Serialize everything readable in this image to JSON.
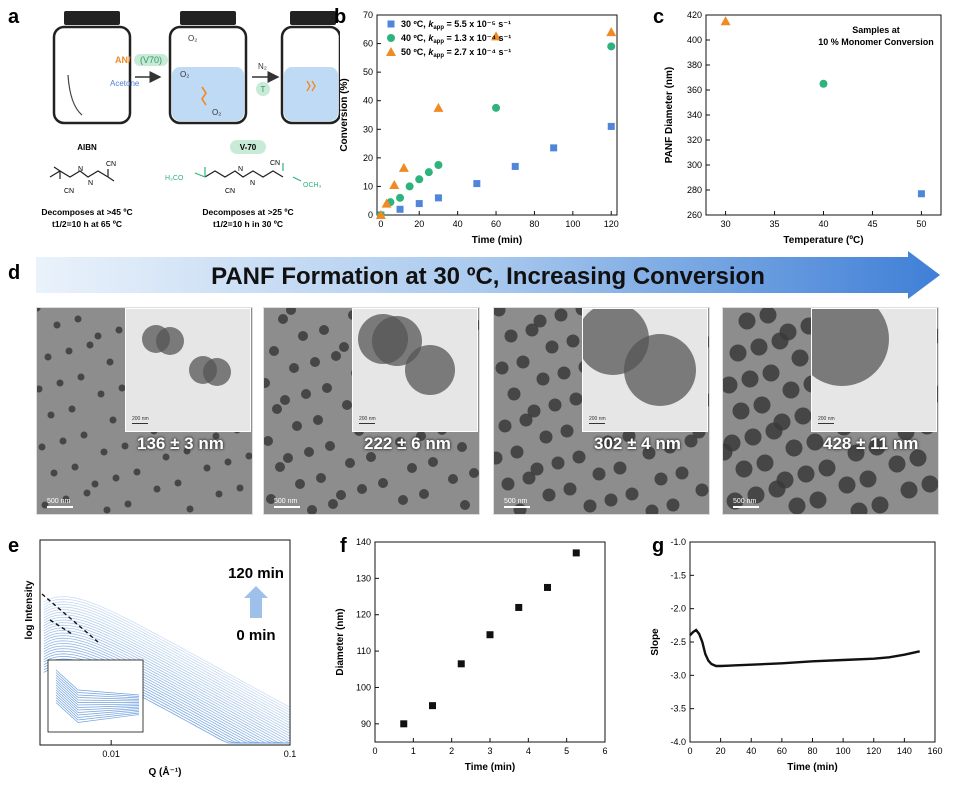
{
  "panels": {
    "a": "a",
    "b": "b",
    "c": "c",
    "d": "d",
    "e": "e",
    "f": "f",
    "g": "g"
  },
  "panel_a": {
    "vial2_reagent_an": "AN/",
    "vial2_reagent_v70": "(V70)",
    "vial2_solvent": "Acetone",
    "vial2_o2": "O₂",
    "vial2_o2_b": "O₂",
    "vial2_o2_c": "O₂",
    "arrow_gas": "N₂",
    "arrow_temp": "T",
    "initiator1_name": "AIBN",
    "initiator1_group1": "CN",
    "initiator1_group2": "CN",
    "initiator1_n1": "N",
    "initiator1_n2": "N",
    "initiator1_desc_line1": "Decomposes at >45 ºC",
    "initiator1_desc_line2": "t1/2=10 h at 65 ºC",
    "initiator2_name": "V-70",
    "initiator2_group1": "CN",
    "initiator2_group2": "CN",
    "initiator2_ome1": "H₃CO",
    "initiator2_ome2": "OCH₃",
    "initiator2_n1": "N",
    "initiator2_n2": "N",
    "initiator2_desc_line1": "Decomposes at >25 ºC",
    "initiator2_desc_line2": "t1/2=10 h in 30 ºC"
  },
  "banner": {
    "text": "PANF Formation at 30 ºC, Increasing Conversion"
  },
  "tem_images": [
    {
      "size": "136 ± 3 nm",
      "scale": "500 nm",
      "inset_scale": "200 nm"
    },
    {
      "size": "222 ± 6 nm",
      "scale": "500 nm",
      "inset_scale": "200 nm"
    },
    {
      "size": "302 ± 4 nm",
      "scale": "500 nm",
      "inset_scale": "200 nm"
    },
    {
      "size": "428 ± 11 nm",
      "scale": "500 nm",
      "inset_scale": "200 nm"
    }
  ],
  "panel_e": {
    "time_top": "120 min",
    "time_bottom": "0 min"
  },
  "chart_data": [
    {
      "id": "b",
      "type": "scatter",
      "xlabel": "Time (min)",
      "ylabel": "Conversion (%)",
      "xlim": [
        -2,
        123
      ],
      "ylim": [
        0,
        70
      ],
      "xticks": [
        0,
        20,
        40,
        60,
        80,
        100,
        120
      ],
      "yticks": [
        0,
        10,
        20,
        30,
        40,
        50,
        60,
        70
      ],
      "legend_position": "top-left",
      "series": [
        {
          "name": "30 ºC, kapp = 5.5 x 10⁻⁵ s⁻¹",
          "label_prefix": "30 ºC, ",
          "label_k": "k",
          "label_sub": "app",
          "label_val": " = 5.5 x 10⁻⁵ s⁻¹",
          "marker": "square",
          "color": "#4f86d9",
          "x": [
            0,
            10,
            20,
            30,
            50,
            70,
            90,
            120
          ],
          "y": [
            0,
            2,
            4,
            6,
            11,
            17,
            23.5,
            31
          ]
        },
        {
          "name": "40 ºC, kapp = 1.3 x 10⁻⁴ s⁻¹",
          "label_prefix": "40 ºC, ",
          "label_k": "k",
          "label_sub": "app",
          "label_val": " = 1.3 x 10⁻⁴ s⁻¹",
          "marker": "circle",
          "color": "#2fb37c",
          "x": [
            0,
            5,
            10,
            15,
            20,
            25,
            30,
            60,
            120
          ],
          "y": [
            0,
            4.5,
            6,
            10,
            12.5,
            15,
            17.5,
            37.5,
            59
          ]
        },
        {
          "name": "50 ºC, kapp = 2.7 x 10⁻⁴ s⁻¹",
          "label_prefix": "50 ºC, ",
          "label_k": "k",
          "label_sub": "app",
          "label_val": " = 2.7 x 10⁻⁴ s⁻¹",
          "marker": "triangle",
          "color": "#f08a24",
          "x": [
            0,
            3,
            7,
            12,
            30,
            60,
            120
          ],
          "y": [
            0,
            4,
            10.5,
            16.5,
            37.5,
            62.5,
            64
          ]
        }
      ]
    },
    {
      "id": "c",
      "type": "scatter",
      "xlabel": "Temperature (ºC)",
      "ylabel": "PANF Diameter (nm)",
      "annotation_line1": "Samples at",
      "annotation_line2": "10 % Monomer Conversion",
      "xlim": [
        28,
        52
      ],
      "ylim": [
        260,
        420
      ],
      "xticks": [
        30,
        35,
        40,
        45,
        50
      ],
      "yticks": [
        260,
        280,
        300,
        320,
        340,
        360,
        380,
        400,
        420
      ],
      "series": [
        {
          "marker": "triangle",
          "color": "#f08a24",
          "x": [
            30
          ],
          "y": [
            415
          ]
        },
        {
          "marker": "circle",
          "color": "#2fb37c",
          "x": [
            40
          ],
          "y": [
            365
          ]
        },
        {
          "marker": "square",
          "color": "#4f86d9",
          "x": [
            50
          ],
          "y": [
            277
          ]
        }
      ]
    },
    {
      "id": "e",
      "type": "line",
      "xlabel": "Q (Å⁻¹)",
      "ylabel": "log Intensity",
      "xscale": "log",
      "xticks": [
        "0.01",
        "0.1"
      ],
      "curve_count": 28,
      "color": "#6fa0e0"
    },
    {
      "id": "f",
      "type": "scatter",
      "xlabel": "Time (min)",
      "ylabel": "Diameter (nm)",
      "xlim": [
        0,
        6
      ],
      "ylim": [
        85,
        140
      ],
      "xticks": [
        0,
        1,
        2,
        3,
        4,
        5,
        6
      ],
      "yticks": [
        90,
        100,
        110,
        120,
        130,
        140
      ],
      "series": [
        {
          "marker": "square",
          "color": "#111111",
          "x": [
            0.75,
            1.5,
            2.25,
            3.0,
            3.75,
            4.5,
            5.25
          ],
          "y": [
            90,
            95,
            106.5,
            114.5,
            122,
            127.5,
            137
          ]
        }
      ]
    },
    {
      "id": "g",
      "type": "line",
      "xlabel": "Time (min)",
      "ylabel": "Slope",
      "xlim": [
        0,
        160
      ],
      "ylim": [
        -4.0,
        -1.0
      ],
      "xticks": [
        0,
        20,
        40,
        60,
        80,
        100,
        120,
        140,
        160
      ],
      "yticks": [
        "-1.0",
        "-1.5",
        "-2.0",
        "-2.5",
        "-3.0",
        "-3.5",
        "-4.0"
      ],
      "series": [
        {
          "color": "#111111",
          "x": [
            0,
            2,
            4,
            6,
            8,
            10,
            12,
            14,
            17,
            20,
            25,
            30,
            40,
            60,
            80,
            100,
            120,
            130,
            140,
            150
          ],
          "y": [
            -2.4,
            -2.35,
            -2.32,
            -2.38,
            -2.5,
            -2.68,
            -2.78,
            -2.83,
            -2.86,
            -2.86,
            -2.855,
            -2.85,
            -2.84,
            -2.82,
            -2.79,
            -2.77,
            -2.75,
            -2.73,
            -2.69,
            -2.64
          ]
        }
      ]
    }
  ]
}
